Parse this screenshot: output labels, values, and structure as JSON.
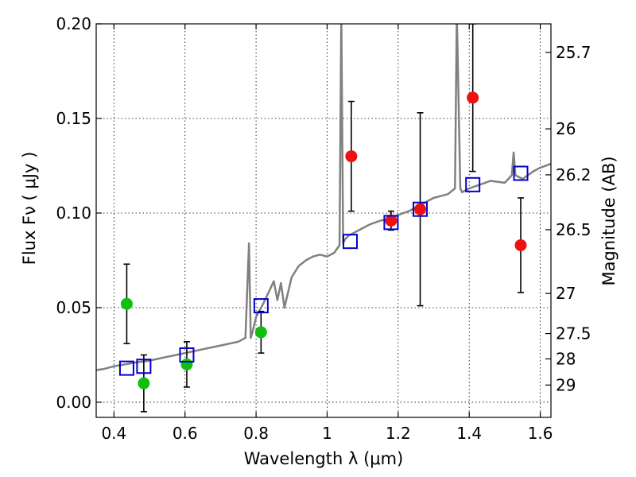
{
  "chart_data": {
    "type": "scatter",
    "title": "",
    "xlabel": "Wavelength  λ (μm)",
    "ylabel_left": "Flux  Fν  ( μJy )",
    "ylabel_right": "Magnitude (AB)",
    "xlim": [
      0.35,
      1.63
    ],
    "ylim": [
      -0.008,
      0.2
    ],
    "grid": true,
    "x_ticks": [
      {
        "value": 0.4,
        "label": "0.4"
      },
      {
        "value": 0.6,
        "label": "0.6"
      },
      {
        "value": 0.8,
        "label": "0.8"
      },
      {
        "value": 1.0,
        "label": "1"
      },
      {
        "value": 1.2,
        "label": "1.2"
      },
      {
        "value": 1.4,
        "label": "1.4"
      },
      {
        "value": 1.6,
        "label": "1.6"
      }
    ],
    "y_ticks": [
      {
        "value": 0.0,
        "label": "0.00"
      },
      {
        "value": 0.05,
        "label": "0.05"
      },
      {
        "value": 0.1,
        "label": "0.10"
      },
      {
        "value": 0.15,
        "label": "0.15"
      },
      {
        "value": 0.2,
        "label": "0.20"
      }
    ],
    "mag_ticks": [
      {
        "value": 0.1849,
        "label": "25.7"
      },
      {
        "value": 0.1445,
        "label": "26"
      },
      {
        "value": 0.1202,
        "label": "26.2"
      },
      {
        "value": 0.0912,
        "label": "26.5"
      },
      {
        "value": 0.0575,
        "label": "27"
      },
      {
        "value": 0.0363,
        "label": "27.5"
      },
      {
        "value": 0.0229,
        "label": "28"
      },
      {
        "value": 0.0091,
        "label": "29"
      }
    ],
    "spectrum": {
      "name": "model spectrum",
      "color": "#808080",
      "x": [
        0.35,
        0.37,
        0.4,
        0.43,
        0.46,
        0.5,
        0.55,
        0.6,
        0.65,
        0.7,
        0.75,
        0.77,
        0.78,
        0.785,
        0.79,
        0.8,
        0.82,
        0.84,
        0.85,
        0.86,
        0.87,
        0.88,
        0.9,
        0.92,
        0.94,
        0.96,
        0.98,
        1.0,
        1.02,
        1.035,
        1.04,
        1.045,
        1.05,
        1.06,
        1.08,
        1.1,
        1.12,
        1.15,
        1.18,
        1.2,
        1.23,
        1.26,
        1.3,
        1.34,
        1.36,
        1.365,
        1.37,
        1.375,
        1.38,
        1.4,
        1.43,
        1.46,
        1.5,
        1.52,
        1.525,
        1.53,
        1.55,
        1.58,
        1.6,
        1.63
      ],
      "y": [
        0.017,
        0.0175,
        0.019,
        0.02,
        0.021,
        0.022,
        0.024,
        0.026,
        0.028,
        0.03,
        0.032,
        0.034,
        0.084,
        0.034,
        0.037,
        0.045,
        0.052,
        0.06,
        0.064,
        0.054,
        0.063,
        0.05,
        0.066,
        0.072,
        0.075,
        0.077,
        0.078,
        0.077,
        0.079,
        0.083,
        0.205,
        0.084,
        0.086,
        0.088,
        0.09,
        0.092,
        0.094,
        0.096,
        0.097,
        0.099,
        0.101,
        0.104,
        0.108,
        0.11,
        0.113,
        0.205,
        0.16,
        0.113,
        0.111,
        0.113,
        0.115,
        0.117,
        0.116,
        0.12,
        0.132,
        0.12,
        0.118,
        0.122,
        0.124,
        0.126
      ]
    },
    "series": [
      {
        "name": "green points",
        "marker": "circle",
        "color": "#10c010",
        "points": [
          {
            "x": 0.436,
            "y": 0.052,
            "yerr": 0.021
          },
          {
            "x": 0.484,
            "y": 0.01,
            "yerr": 0.015
          },
          {
            "x": 0.605,
            "y": 0.02,
            "yerr": 0.012
          },
          {
            "x": 0.814,
            "y": 0.037,
            "yerr": 0.011
          }
        ]
      },
      {
        "name": "red points",
        "marker": "circle",
        "color": "#ee1111",
        "points": [
          {
            "x": 1.068,
            "y": 0.13,
            "yerr": 0.029
          },
          {
            "x": 1.18,
            "y": 0.096,
            "yerr": 0.005
          },
          {
            "x": 1.262,
            "y": 0.102,
            "yerr": 0.051
          },
          {
            "x": 1.41,
            "y": 0.161,
            "yerr": 0.039
          },
          {
            "x": 1.545,
            "y": 0.083,
            "yerr": 0.025
          }
        ]
      },
      {
        "name": "model photometry",
        "marker": "open-square",
        "color": "#0000cc",
        "points": [
          {
            "x": 0.436,
            "y": 0.018
          },
          {
            "x": 0.484,
            "y": 0.019
          },
          {
            "x": 0.605,
            "y": 0.025
          },
          {
            "x": 0.814,
            "y": 0.051
          },
          {
            "x": 1.065,
            "y": 0.085
          },
          {
            "x": 1.18,
            "y": 0.095
          },
          {
            "x": 1.262,
            "y": 0.102
          },
          {
            "x": 1.41,
            "y": 0.115
          },
          {
            "x": 1.545,
            "y": 0.121
          }
        ]
      }
    ]
  }
}
